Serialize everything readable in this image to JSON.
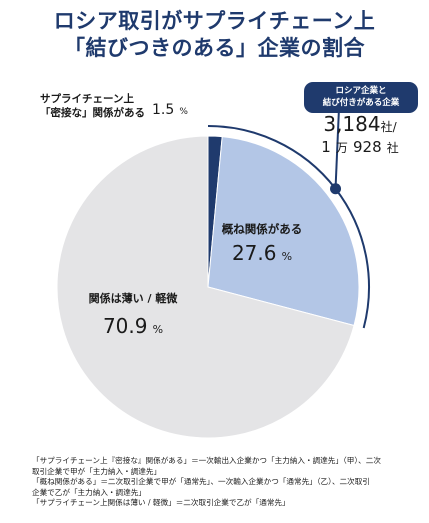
{
  "title": {
    "line1": "ロシア取引がサプライチェーン上",
    "line2": "「結びつきのある」企業の割合"
  },
  "badge": {
    "line1": "ロシア企業と",
    "line2": "結び付きがある企業"
  },
  "company_count": {
    "total_number": "3,184",
    "total_unit": "社/",
    "sub_1": "1",
    "sub_man": "万",
    "sub_2": "928",
    "sub_unit": "社"
  },
  "chart_data": {
    "type": "pie",
    "title": "ロシア取引がサプライチェーン上「結びつきのある」企業の割合",
    "slices": [
      {
        "label_line1": "サプライチェーン上",
        "label_line2": "「密接な」関係がある",
        "value": 1.5,
        "value_text": "1.5",
        "unit": "%",
        "color": "#1f3a6d"
      },
      {
        "label_line1": "概ね関係がある",
        "value": 27.6,
        "value_text": "27.6",
        "unit": "%",
        "color": "#b3c6e6"
      },
      {
        "label_line1": "関係は薄い / 軽微",
        "value": 70.9,
        "value_text": "70.9",
        "unit": "%",
        "color": "#e4e4e6"
      }
    ]
  },
  "notes": [
    "「サプライチェーン上『密接な』関係がある」＝一次輸出入企業かつ「主力納入・調達先」（甲）、二次",
    "取引企業で甲が「主力納入・調達先」",
    "「概ね関係がある」＝二次取引企業で甲が「通常先」、一次輸入企業かつ「通常先」（乙）、二次取引",
    "企業で乙が「主力納入・調達先」",
    "「サプライチェーン上関係は薄い / 軽微」＝二次取引企業で乙が「通常先」"
  ]
}
